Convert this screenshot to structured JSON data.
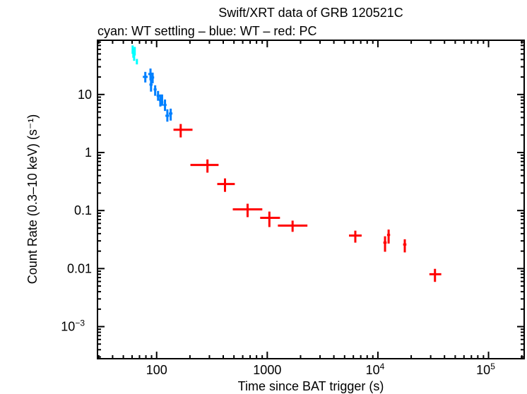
{
  "chart_data": {
    "type": "scatter",
    "title": "Swift/XRT data of GRB 120521C",
    "subtitle": "cyan: WT settling – blue: WT – red: PC",
    "xlabel": "Time since BAT trigger (s)",
    "ylabel": "Count Rate (0.3–10 keV) (s⁻¹)",
    "xscale": "log",
    "yscale": "log",
    "xlim": [
      29.2,
      210000
    ],
    "ylim": [
      0.00028,
      86
    ],
    "grid": false,
    "x_ticks": [
      {
        "value": 100,
        "label": "100"
      },
      {
        "value": 1000,
        "label": "1000"
      },
      {
        "value": 10000,
        "label": "10",
        "exp": "4"
      },
      {
        "value": 100000,
        "label": "10",
        "exp": "5"
      }
    ],
    "y_ticks": [
      {
        "value": 10,
        "label": "10"
      },
      {
        "value": 1,
        "label": "1"
      },
      {
        "value": 0.1,
        "label": "0.1"
      },
      {
        "value": 0.01,
        "label": "0.01"
      },
      {
        "value": 0.001,
        "label": "10",
        "exp": "−3"
      }
    ],
    "point_format": [
      "t",
      "t_lo",
      "t_hi",
      "rate",
      "rate_lo",
      "rate_hi"
    ],
    "series": [
      {
        "mode": "WT settling",
        "color": "#00ffff",
        "points": [
          [
            60.7,
            60.2,
            61.2,
            60,
            70,
            50
          ],
          [
            61.6,
            61.1,
            62.1,
            52,
            62,
            43
          ],
          [
            62.6,
            62.1,
            63.1,
            45.4,
            54,
            38
          ],
          [
            63.4,
            62.9,
            63.9,
            56.7,
            66,
            47
          ],
          [
            66.3,
            65.0,
            67.6,
            37.3,
            41,
            33
          ]
        ]
      },
      {
        "mode": "WT",
        "color": "#0080ff",
        "points": [
          [
            79,
            75,
            83,
            20.1,
            24.5,
            16.1
          ],
          [
            88,
            84,
            92,
            22.5,
            28,
            17.5
          ],
          [
            92,
            89,
            95,
            19.6,
            23.8,
            15.6
          ],
          [
            89,
            86,
            92,
            14.8,
            18,
            11.2
          ],
          [
            97,
            94,
            100,
            12.2,
            14.4,
            9.5
          ],
          [
            103,
            100,
            106,
            9.5,
            11.5,
            7.8
          ],
          [
            108,
            105,
            111,
            8.0,
            10,
            6.2
          ],
          [
            112,
            109,
            115,
            7.35,
            10,
            6.4
          ],
          [
            119,
            115,
            123,
            6.6,
            8.2,
            5.2
          ],
          [
            125,
            120,
            130,
            4.3,
            5.55,
            3.4
          ],
          [
            134,
            129,
            139,
            4.7,
            5.7,
            3.55
          ]
        ]
      },
      {
        "mode": "PC",
        "color": "#ff0000",
        "points": [
          [
            165,
            142,
            211,
            2.47,
            3.1,
            1.82
          ],
          [
            288,
            202,
            363,
            0.61,
            0.76,
            0.45
          ],
          [
            415,
            353,
            509,
            0.286,
            0.358,
            0.21
          ],
          [
            664,
            488,
            902,
            0.105,
            0.131,
            0.077
          ],
          [
            1045,
            863,
            1303,
            0.075,
            0.096,
            0.052
          ],
          [
            1694,
            1248,
            2306,
            0.055,
            0.067,
            0.043
          ],
          [
            6250,
            5480,
            7130,
            0.037,
            0.045,
            0.028
          ],
          [
            11600,
            11200,
            12000,
            0.028,
            0.036,
            0.0195
          ],
          [
            12500,
            12100,
            12900,
            0.038,
            0.047,
            0.027
          ],
          [
            17500,
            16900,
            18100,
            0.026,
            0.032,
            0.019
          ],
          [
            32800,
            29200,
            37400,
            0.008,
            0.0099,
            0.0059
          ]
        ]
      }
    ]
  }
}
